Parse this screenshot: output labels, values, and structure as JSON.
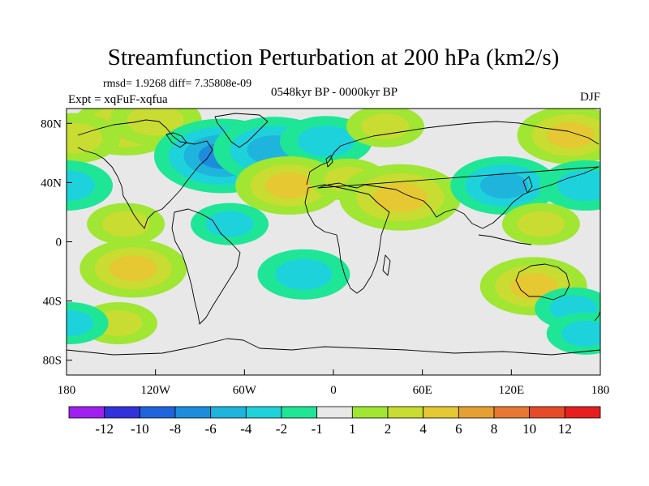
{
  "chart_data": {
    "type": "heatmap",
    "title": "Streamfunction Perturbation at 200 hPa (km2/s)",
    "stats_line": "rmsd= 1.9268 diff= 7.35808e-09",
    "expt_label": "Expt = xqFuF-xqfua",
    "period_label": "0548kyr BP - 0000kyr BP",
    "season_label": "DJF",
    "projection": "cylindrical equidistant, lon -180..180, lat -90..90",
    "xlim": [
      -180,
      180
    ],
    "ylim": [
      -90,
      90
    ],
    "x_ticks": [
      {
        "value": -180,
        "label": "180"
      },
      {
        "value": -120,
        "label": "120W"
      },
      {
        "value": -60,
        "label": "60W"
      },
      {
        "value": 0,
        "label": "0"
      },
      {
        "value": 60,
        "label": "60E"
      },
      {
        "value": 120,
        "label": "120E"
      },
      {
        "value": 180,
        "label": "180"
      }
    ],
    "y_ticks": [
      {
        "value": 80,
        "label": "80N"
      },
      {
        "value": 40,
        "label": "40N"
      },
      {
        "value": 0,
        "label": "0"
      },
      {
        "value": -40,
        "label": "40S"
      },
      {
        "value": -80,
        "label": "80S"
      }
    ],
    "colorbar": {
      "levels": [
        -12,
        -10,
        -8,
        -6,
        -4,
        -2,
        -1,
        1,
        2,
        4,
        6,
        8,
        10,
        12
      ],
      "labels": [
        "-12",
        "-10",
        "-8",
        "-6",
        "-4",
        "-2",
        "-1",
        "1",
        "2",
        "4",
        "6",
        "8",
        "10",
        "12"
      ],
      "colors": [
        "#a020f0",
        "#3232dc",
        "#1e64dc",
        "#1e8cdc",
        "#1eb4dc",
        "#1ed2dc",
        "#1ee696",
        "#e8e8e8",
        "#a0e632",
        "#c8dc32",
        "#e6c832",
        "#e6a032",
        "#e67832",
        "#e64b28",
        "#e61e1e"
      ]
    },
    "anomalies": [
      {
        "lon": -140,
        "lat": 78,
        "value": 4
      },
      {
        "lon": -120,
        "lat": 82,
        "value": 3
      },
      {
        "lon": -75,
        "lat": 58,
        "value": -6
      },
      {
        "lon": -40,
        "lat": 62,
        "value": -5
      },
      {
        "lon": -5,
        "lat": 68,
        "value": -3
      },
      {
        "lon": 35,
        "lat": 78,
        "value": 2
      },
      {
        "lon": -30,
        "lat": 38,
        "value": 4
      },
      {
        "lon": 10,
        "lat": 42,
        "value": 2
      },
      {
        "lon": 45,
        "lat": 30,
        "value": 5
      },
      {
        "lon": 115,
        "lat": 38,
        "value": -4
      },
      {
        "lon": 160,
        "lat": 72,
        "value": 4
      },
      {
        "lon": -175,
        "lat": 70,
        "value": 3
      },
      {
        "lon": 170,
        "lat": 38,
        "value": -3
      },
      {
        "lon": -180,
        "lat": 38,
        "value": -3
      },
      {
        "lon": -140,
        "lat": 12,
        "value": 2
      },
      {
        "lon": -70,
        "lat": 12,
        "value": -2
      },
      {
        "lon": -135,
        "lat": -18,
        "value": 4
      },
      {
        "lon": -20,
        "lat": -22,
        "value": -3
      },
      {
        "lon": 140,
        "lat": 12,
        "value": 2
      },
      {
        "lon": 135,
        "lat": -30,
        "value": 4
      },
      {
        "lon": 162,
        "lat": -45,
        "value": -2
      },
      {
        "lon": -145,
        "lat": -55,
        "value": 2
      },
      {
        "lon": -178,
        "lat": -55,
        "value": -2
      },
      {
        "lon": 170,
        "lat": -62,
        "value": -2
      }
    ]
  }
}
